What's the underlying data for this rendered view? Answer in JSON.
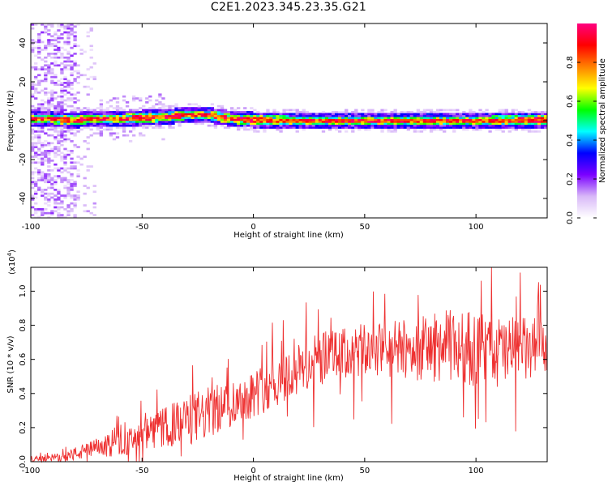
{
  "title": "C2E1.2023.345.23.35.G21",
  "chart_data": [
    {
      "type": "heatmap",
      "name": "spectrogram",
      "xlabel": "Height of straight line (km)",
      "ylabel": "Frequency (Hz)",
      "xlim": [
        -100,
        132
      ],
      "ylim": [
        -50,
        50
      ],
      "xticks": [
        -100,
        -50,
        0,
        50,
        100
      ],
      "xtick_labels": [
        "-100",
        "-50",
        "0",
        "50",
        "100"
      ],
      "yticks": [
        -40,
        -20,
        0,
        20,
        40
      ],
      "ytick_labels": [
        "-40",
        "-20",
        "0",
        "20",
        "40"
      ],
      "colorbar": {
        "label": "Normalized spectral amplitude",
        "range": [
          0,
          1
        ],
        "ticks": [
          0.0,
          0.2,
          0.4,
          0.6,
          0.8
        ],
        "tick_labels": [
          "0.0",
          "0.2",
          "0.4",
          "0.6",
          "0.8"
        ],
        "colors": [
          "#ffffff",
          "#d8b8f8",
          "#7a00ff",
          "#0000ff",
          "#00ffff",
          "#00ff00",
          "#ffff00",
          "#ff8000",
          "#ff0000",
          "#ff0080"
        ]
      },
      "ridge": [
        {
          "x": -100,
          "y": 1
        },
        {
          "x": -90,
          "y": 1
        },
        {
          "x": -80,
          "y": 0
        },
        {
          "x": -75,
          "y": 1
        },
        {
          "x": -60,
          "y": 1
        },
        {
          "x": -40,
          "y": 2
        },
        {
          "x": -30,
          "y": 3
        },
        {
          "x": -20,
          "y": 3
        },
        {
          "x": -10,
          "y": 1
        },
        {
          "x": 0,
          "y": 0.5
        },
        {
          "x": 20,
          "y": 0
        },
        {
          "x": 50,
          "y": 0
        },
        {
          "x": 80,
          "y": 0
        },
        {
          "x": 100,
          "y": 0
        },
        {
          "x": 132,
          "y": 0.5
        }
      ]
    },
    {
      "type": "line",
      "name": "snr",
      "xlabel": "Height of straight line (km)",
      "ylabel": "SNR (10 * v/v)",
      "multiplier_label": "(x10",
      "multiplier_exp": "4",
      "xlim": [
        -100,
        132
      ],
      "ylim": [
        0,
        1.14
      ],
      "xticks": [
        -100,
        -50,
        0,
        50,
        100
      ],
      "xtick_labels": [
        "-100",
        "-50",
        "0",
        "50",
        "100"
      ],
      "yticks": [
        0.0,
        0.2,
        0.4,
        0.6,
        0.8,
        1.0
      ],
      "ytick_labels": [
        "0.0",
        "0.2",
        "0.4",
        "0.6",
        "0.8",
        "1.0"
      ],
      "color": "#ee3030",
      "envelope": [
        {
          "x": -100,
          "mean": 0.01,
          "spread": 0.01
        },
        {
          "x": -85,
          "mean": 0.03,
          "spread": 0.03
        },
        {
          "x": -70,
          "mean": 0.08,
          "spread": 0.06
        },
        {
          "x": -55,
          "mean": 0.12,
          "spread": 0.08
        },
        {
          "x": -40,
          "mean": 0.2,
          "spread": 0.12
        },
        {
          "x": -25,
          "mean": 0.26,
          "spread": 0.16
        },
        {
          "x": -12,
          "mean": 0.33,
          "spread": 0.14
        },
        {
          "x": 0,
          "mean": 0.4,
          "spread": 0.14
        },
        {
          "x": 15,
          "mean": 0.5,
          "spread": 0.16
        },
        {
          "x": 30,
          "mean": 0.6,
          "spread": 0.16
        },
        {
          "x": 50,
          "mean": 0.65,
          "spread": 0.16
        },
        {
          "x": 70,
          "mean": 0.66,
          "spread": 0.18
        },
        {
          "x": 90,
          "mean": 0.68,
          "spread": 0.22
        },
        {
          "x": 110,
          "mean": 0.64,
          "spread": 0.22
        },
        {
          "x": 132,
          "mean": 0.66,
          "spread": 0.18
        }
      ]
    }
  ]
}
